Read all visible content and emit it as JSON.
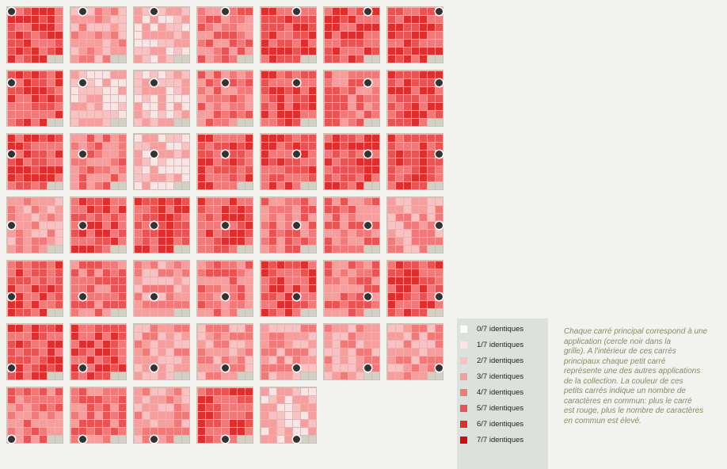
{
  "legend": {
    "items": [
      {
        "label": "0/7 identiques",
        "color": "#ffffff"
      },
      {
        "label": "1/7 identiques",
        "color": "#fbe4e4"
      },
      {
        "label": "2/7 identiques",
        "color": "#f8c2c2"
      },
      {
        "label": "3/7 identiques",
        "color": "#f59e9e"
      },
      {
        "label": "4/7 identiques",
        "color": "#f07a7a"
      },
      {
        "label": "5/7 identiques",
        "color": "#e85454"
      },
      {
        "label": "6/7 identiques",
        "color": "#de2e2e"
      },
      {
        "label": "7/7 identiques",
        "color": "#d10a0a"
      }
    ]
  },
  "note": "Chaque carré principal correspond à une application (cercle noir dans la\ngrille). A l'intérieur de ces carrés\nprincipaux chaque petit carré\nreprésente une des autres applications\nde la collection. La couleur de ces\npetits carrés indique un nombre de\ncaractères en commun: plus le carré\nest rouge, plus le nombre de caractères\nen commun est élevé.",
  "chart_data": {
    "type": "heatmap",
    "description_scale": "0-7 identical characters",
    "panel_count": 47,
    "panel_columns": 7,
    "cells_per_panel": [
      7,
      7
    ],
    "panel_base_levels": [
      5,
      3,
      2,
      4,
      5,
      5,
      5,
      5,
      2,
      2,
      4,
      5,
      4,
      5,
      5,
      4,
      2,
      5,
      5,
      5,
      5,
      3,
      5,
      5,
      5,
      4,
      4,
      3,
      5,
      4,
      3,
      4,
      5,
      4,
      5,
      5,
      5,
      3,
      3,
      3,
      3,
      3,
      4,
      4,
      3,
      5,
      2
    ]
  }
}
